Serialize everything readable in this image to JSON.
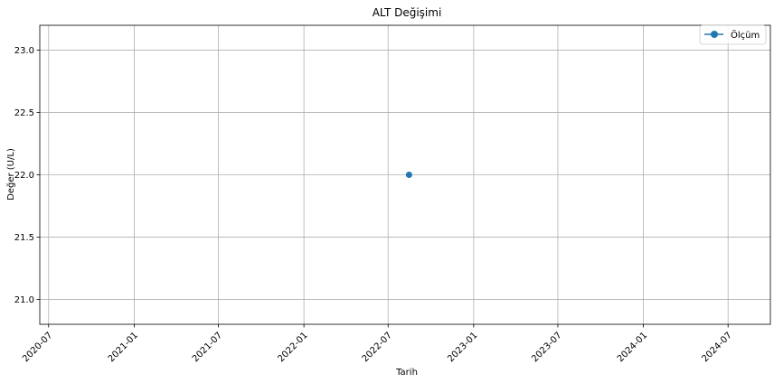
{
  "chart_data": {
    "type": "line",
    "title": "ALT Değişimi",
    "xlabel": "Tarih",
    "ylabel": "Değer (U/L)",
    "series": [
      {
        "name": "Ölçüm",
        "color": "#1f77b4",
        "marker": "circle",
        "points": [
          {
            "x": "2022-08-15",
            "y": 22.0
          }
        ]
      }
    ],
    "xlim": [
      "2020-06-12",
      "2024-09-30"
    ],
    "ylim": [
      20.8,
      23.2
    ],
    "x_ticks": [
      "2020-07",
      "2021-01",
      "2021-07",
      "2022-01",
      "2022-07",
      "2023-01",
      "2023-07",
      "2024-01",
      "2024-07"
    ],
    "y_ticks": [
      "21.0",
      "21.5",
      "22.0",
      "22.5",
      "23.0"
    ],
    "grid": true,
    "legend_position": "top-right"
  }
}
